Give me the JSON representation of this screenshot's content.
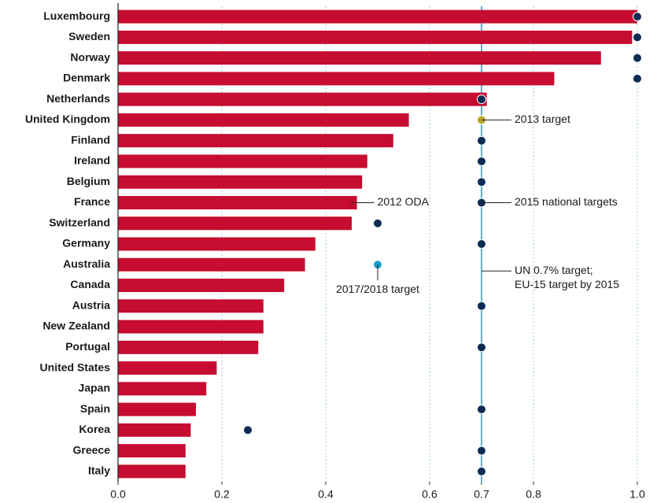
{
  "chart_data": {
    "type": "bar",
    "orientation": "horizontal",
    "categories": [
      "Luxembourg",
      "Sweden",
      "Norway",
      "Denmark",
      "Netherlands",
      "United Kingdom",
      "Finland",
      "Ireland",
      "Belgium",
      "France",
      "Switzerland",
      "Germany",
      "Australia",
      "Canada",
      "Austria",
      "New Zealand",
      "Portugal",
      "United States",
      "Japan",
      "Spain",
      "Korea",
      "Greece",
      "Italy"
    ],
    "series": [
      {
        "name": "2012 ODA",
        "color": "#c60c30",
        "mark": "bar",
        "values": [
          1.0,
          0.99,
          0.93,
          0.84,
          0.71,
          0.56,
          0.53,
          0.48,
          0.47,
          0.46,
          0.45,
          0.38,
          0.36,
          0.32,
          0.28,
          0.28,
          0.27,
          0.19,
          0.17,
          0.15,
          0.14,
          0.13,
          0.13
        ]
      },
      {
        "name": "2015 national targets",
        "color": "#0d2c54",
        "mark": "dot",
        "values": [
          1.0,
          1.0,
          1.0,
          1.0,
          0.7,
          null,
          0.7,
          0.7,
          0.7,
          0.7,
          0.5,
          0.7,
          null,
          null,
          0.7,
          null,
          0.7,
          null,
          null,
          0.7,
          0.25,
          0.7,
          0.7
        ]
      },
      {
        "name": "2013 target",
        "color": "#b5a82a",
        "mark": "dot",
        "values": [
          null,
          null,
          null,
          null,
          null,
          0.7,
          null,
          null,
          null,
          null,
          null,
          null,
          null,
          null,
          null,
          null,
          null,
          null,
          null,
          null,
          null,
          null,
          null
        ]
      },
      {
        "name": "2017/2018 target",
        "color": "#1a9fd0",
        "mark": "dot",
        "values": [
          null,
          null,
          null,
          null,
          null,
          null,
          null,
          null,
          null,
          null,
          null,
          null,
          0.5,
          null,
          null,
          null,
          null,
          null,
          null,
          null,
          null,
          null,
          null
        ]
      }
    ],
    "reference_line": {
      "value": 0.7,
      "color": "#1a7fb0",
      "label": [
        "UN 0.7% target;",
        "EU-15 target by 2015"
      ]
    },
    "xlim": [
      0,
      1.0
    ],
    "xticks": [
      {
        "value": 0,
        "label": "0.0"
      },
      0.2,
      0.4,
      0.6,
      0.7,
      0.8,
      {
        "value": 1.0,
        "label": "1.0"
      }
    ],
    "grid": true
  }
}
